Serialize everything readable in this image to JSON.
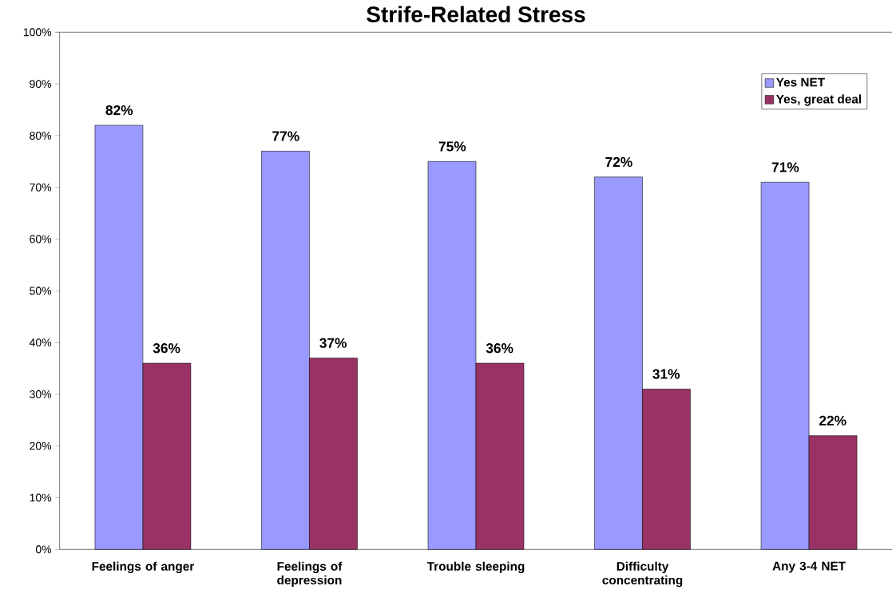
{
  "chart_data": {
    "type": "bar",
    "title": "Strife-Related Stress",
    "categories": [
      "Feelings of anger",
      "Feelings of depression",
      "Trouble sleeping",
      "Difficulty concentrating",
      "Any 3-4 NET"
    ],
    "series": [
      {
        "name": "Yes NET",
        "color": "#9999ff",
        "values": [
          82,
          77,
          75,
          72,
          71
        ],
        "value_labels": [
          "82%",
          "77%",
          "75%",
          "72%",
          "71%"
        ]
      },
      {
        "name": "Yes, great deal",
        "color": "#993366",
        "values": [
          36,
          37,
          36,
          31,
          22
        ],
        "value_labels": [
          "36%",
          "37%",
          "36%",
          "31%",
          "22%"
        ]
      }
    ],
    "ylim": [
      0,
      100
    ],
    "yticks": [
      {
        "value": 0,
        "label": "0%"
      },
      {
        "value": 10,
        "label": "10%"
      },
      {
        "value": 20,
        "label": "20%"
      },
      {
        "value": 30,
        "label": "30%"
      },
      {
        "value": 40,
        "label": "40%"
      },
      {
        "value": 50,
        "label": "50%"
      },
      {
        "value": 60,
        "label": "60%"
      },
      {
        "value": 70,
        "label": "70%"
      },
      {
        "value": 80,
        "label": "80%"
      },
      {
        "value": 90,
        "label": "90%"
      },
      {
        "value": 100,
        "label": "100%"
      }
    ],
    "grid": false,
    "legend": "top right"
  }
}
